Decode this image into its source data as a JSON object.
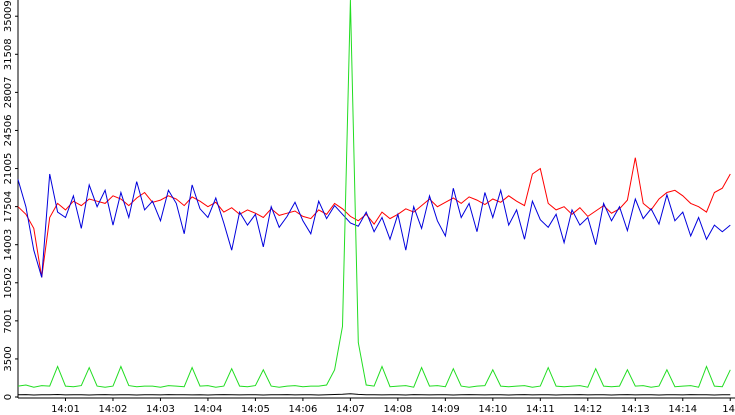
{
  "chart_data": {
    "type": "line",
    "x": [
      0,
      10,
      20,
      30,
      40,
      50,
      60,
      70,
      80,
      90,
      100,
      110,
      120,
      130,
      140,
      150,
      160,
      170,
      180,
      190,
      200,
      210,
      220,
      230,
      240,
      250,
      260,
      270,
      280,
      290,
      300,
      310,
      320,
      330,
      340,
      350,
      360,
      370,
      380,
      390,
      400,
      410,
      420,
      430,
      440,
      450,
      460,
      470,
      480,
      490,
      500,
      510,
      520,
      530,
      540,
      550,
      560,
      570,
      580,
      590,
      600,
      610,
      620,
      630,
      640,
      650,
      660,
      670,
      680,
      690,
      700,
      710,
      720,
      730,
      740,
      750,
      760,
      770,
      780,
      790,
      800,
      810,
      820,
      830,
      840,
      850,
      860,
      870,
      880,
      890,
      900
    ],
    "xlim": [
      0,
      906
    ],
    "xticks": [
      {
        "value": 60,
        "label": "14:01"
      },
      {
        "value": 120,
        "label": "14:02"
      },
      {
        "value": 180,
        "label": "14:03"
      },
      {
        "value": 240,
        "label": "14:04"
      },
      {
        "value": 300,
        "label": "14:05"
      },
      {
        "value": 360,
        "label": "14:06"
      },
      {
        "value": 420,
        "label": "14:07"
      },
      {
        "value": 480,
        "label": "14:08"
      },
      {
        "value": 540,
        "label": "14:09"
      },
      {
        "value": 600,
        "label": "14:10"
      },
      {
        "value": 660,
        "label": "14:11"
      },
      {
        "value": 720,
        "label": "14:12"
      },
      {
        "value": 780,
        "label": "14:13"
      },
      {
        "value": 840,
        "label": "14:14"
      },
      {
        "value": 900,
        "label": "14"
      }
    ],
    "ylim": [
      0,
      36500
    ],
    "yticks": [
      0,
      3500,
      7001,
      10502,
      14003,
      17504,
      21005,
      24506,
      28007,
      31508,
      35009
    ],
    "series": [
      {
        "color": "#ff0000",
        "values": [
          17500,
          16800,
          15500,
          11000,
          16500,
          17800,
          17200,
          18000,
          17600,
          18200,
          18000,
          17800,
          18500,
          18200,
          17600,
          18300,
          18800,
          17900,
          18100,
          18500,
          18200,
          17600,
          18400,
          18000,
          17500,
          17900,
          17000,
          17400,
          16800,
          17200,
          16900,
          16500,
          17300,
          16700,
          16900,
          17100,
          16600,
          16400,
          17200,
          16800,
          17800,
          17300,
          16600,
          16200,
          16800,
          15900,
          17000,
          16400,
          16800,
          17300,
          17000,
          17600,
          18200,
          17500,
          17900,
          18300,
          17800,
          18400,
          18100,
          17700,
          18200,
          17900,
          18500,
          18000,
          17600,
          20500,
          21000,
          17800,
          17200,
          17500,
          16800,
          17400,
          16600,
          17100,
          17600,
          16900,
          17300,
          18100,
          22000,
          17800,
          17200,
          18200,
          18800,
          19000,
          18500,
          17800,
          17500,
          17000,
          18800,
          19200,
          20500
        ]
      },
      {
        "color": "#0000dd",
        "values": [
          20000,
          17500,
          13500,
          11000,
          20500,
          17000,
          16500,
          18500,
          15500,
          19500,
          17500,
          19000,
          15800,
          18800,
          16500,
          19800,
          17200,
          18000,
          16200,
          19000,
          17800,
          15000,
          19500,
          17300,
          16500,
          18300,
          16000,
          13500,
          17000,
          15800,
          16800,
          13800,
          17500,
          15600,
          16600,
          17900,
          16200,
          15000,
          18000,
          16400,
          17600,
          16800,
          16000,
          15700,
          17000,
          15200,
          16500,
          14500,
          16800,
          13500,
          17500,
          15500,
          18500,
          16200,
          14800,
          19200,
          16500,
          17800,
          15200,
          18800,
          16500,
          19000,
          15800,
          17200,
          14500,
          18000,
          16300,
          15600,
          16800,
          14200,
          17200,
          15800,
          16500,
          14000,
          17800,
          16200,
          17500,
          15300,
          18200,
          16400,
          17300,
          15900,
          18600,
          16200,
          17000,
          14800,
          16500,
          14500,
          15800,
          15200,
          15800
        ]
      },
      {
        "color": "#22dd22",
        "values": [
          1000,
          1100,
          900,
          1050,
          1000,
          2800,
          1000,
          950,
          1050,
          2700,
          1000,
          900,
          1000,
          2800,
          1050,
          950,
          1000,
          1000,
          900,
          1050,
          1000,
          950,
          2700,
          1000,
          1050,
          900,
          1000,
          2600,
          1000,
          950,
          1050,
          2500,
          1000,
          900,
          1000,
          1050,
          950,
          1000,
          1000,
          1100,
          2500,
          6500,
          36500,
          5000,
          1100,
          1000,
          2800,
          950,
          1000,
          1050,
          900,
          2700,
          1000,
          1050,
          950,
          2600,
          1000,
          900,
          1000,
          1050,
          2500,
          1000,
          950,
          1000,
          1050,
          900,
          1000,
          2700,
          1000,
          950,
          1000,
          1050,
          900,
          2600,
          1000,
          950,
          1000,
          2500,
          1000,
          1050,
          900,
          1000,
          2500,
          950,
          1000,
          1050,
          900,
          2800,
          1000,
          950,
          2500
        ]
      },
      {
        "color": "#000000",
        "values": [
          200,
          220,
          180,
          210,
          200,
          230,
          190,
          200,
          210,
          180,
          200,
          220,
          190,
          210,
          200,
          180,
          210,
          200,
          190,
          220,
          200,
          210,
          190,
          200,
          180,
          210,
          220,
          200,
          190,
          210,
          200,
          180,
          210,
          200,
          220,
          190,
          200,
          210,
          180,
          200,
          230,
          260,
          300,
          240,
          210,
          200,
          190,
          210,
          200,
          180,
          220,
          200,
          190,
          210,
          200,
          180,
          210,
          220,
          200,
          190,
          210,
          200,
          180,
          200,
          220,
          190,
          210,
          200,
          180,
          210,
          200,
          220,
          190,
          200,
          210,
          180,
          200,
          220,
          190,
          210,
          200,
          180,
          210,
          200,
          190,
          220,
          200,
          210,
          180,
          200,
          210
        ]
      }
    ]
  }
}
